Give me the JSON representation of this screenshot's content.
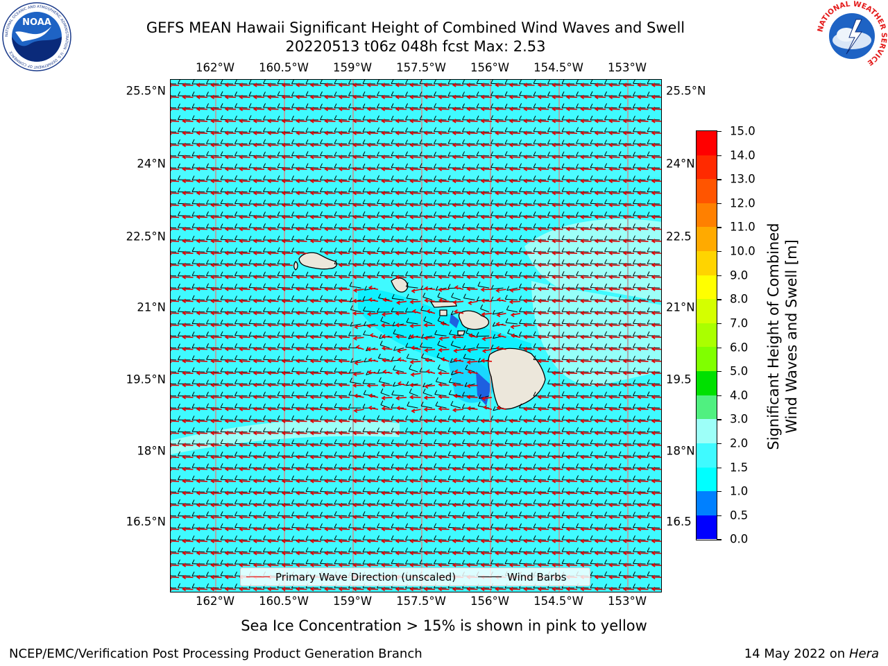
{
  "title": {
    "line1": "GEFS MEAN Hawaii Significant Height of Combined Wind Waves and Swell",
    "line2": "20220513 t06z 048h fcst   Max: 2.53"
  },
  "map": {
    "lon_labels": [
      "162°W",
      "160.5°W",
      "159°W",
      "157.5°W",
      "156°W",
      "154.5°W",
      "153°W"
    ],
    "lat_labels": [
      "25.5°N",
      "24°N",
      "22.5°N",
      "21°N",
      "19.5°N",
      "18°N",
      "16.5°N"
    ],
    "lat_labels_right": [
      "25.5°N",
      "24°N",
      "22.5",
      "21°N",
      "19.5",
      "18°N",
      "16.5"
    ],
    "lon_range": [
      -163.0,
      -152.7
    ],
    "lat_range": [
      15.0,
      25.7
    ],
    "graticule_color": "#aaaaaa",
    "land_color": "#ece7db",
    "ocean_base_color": "#3ffaff",
    "islands": [
      "Niihau",
      "Kauai",
      "Oahu",
      "Molokai",
      "Lanai",
      "Maui",
      "Kahoolawe",
      "Hawaii"
    ]
  },
  "colorbar": {
    "label_line1": "Significant Height of Combined",
    "label_line2": "Wind Waves and Swell [m]",
    "ticks": [
      "15.0",
      "14.0",
      "13.0",
      "12.0",
      "11.0",
      "10.0",
      "9.0",
      "8.0",
      "7.0",
      "6.0",
      "5.0",
      "4.0",
      "3.0",
      "2.0",
      "1.5",
      "1.0",
      "0.5",
      "0.0"
    ],
    "colors": [
      "#ff0000",
      "#ff2a00",
      "#ff5500",
      "#ff8000",
      "#ffaa00",
      "#ffd400",
      "#ffff00",
      "#d4ff00",
      "#aaff00",
      "#80ff00",
      "#00e000",
      "#50f080",
      "#9dfff8",
      "#3ffaff",
      "#00ffff",
      "#0080ff",
      "#0000ff"
    ]
  },
  "legend": {
    "wave_label": "Primary Wave Direction (unscaled)",
    "wave_color": "#e00000",
    "barb_label": "Wind Barbs",
    "barb_color": "#000000"
  },
  "caption": "Sea Ice Concentration > 15% is shown in pink to yellow",
  "footer": {
    "left": "NCEP/EMC/Verification Post Processing Product Generation Branch",
    "right_date": "14 May 2022 on",
    "right_host": "Hera"
  },
  "logos": {
    "noaa_text": "NOAA",
    "noaa_ring": "NATIONAL OCEANIC AND ATMOSPHERIC ADMINISTRATION · U.S. DEPARTMENT OF COMMERCE",
    "nws_ring": "NATIONAL WEATHER SERVICE"
  }
}
